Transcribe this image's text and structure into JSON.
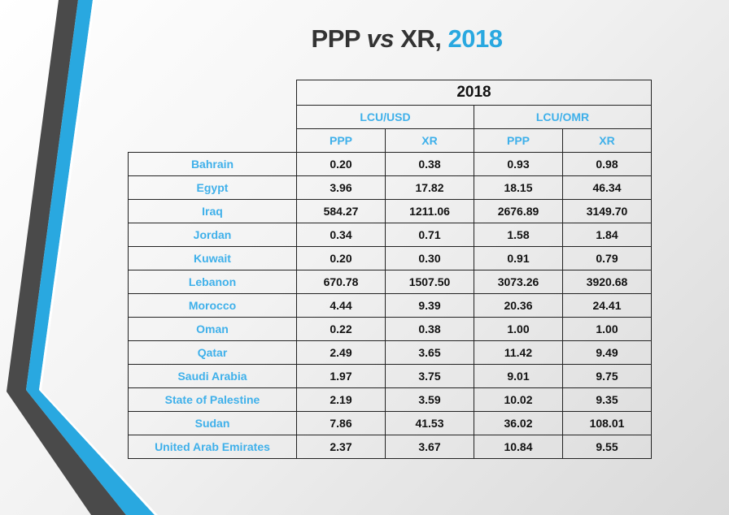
{
  "title": {
    "part1": "PPP ",
    "part2": "vs",
    "part3": " XR, ",
    "part4": "2018"
  },
  "table": {
    "year": "2018",
    "groups": [
      "LCU/USD",
      "LCU/OMR"
    ],
    "subheaders": [
      "PPP",
      "XR",
      "PPP",
      "XR"
    ],
    "rows": [
      {
        "country": "Bahrain",
        "values": [
          "0.20",
          "0.38",
          "0.93",
          "0.98"
        ]
      },
      {
        "country": "Egypt",
        "values": [
          "3.96",
          "17.82",
          "18.15",
          "46.34"
        ]
      },
      {
        "country": "Iraq",
        "values": [
          "584.27",
          "1211.06",
          "2676.89",
          "3149.70"
        ]
      },
      {
        "country": "Jordan",
        "values": [
          "0.34",
          "0.71",
          "1.58",
          "1.84"
        ]
      },
      {
        "country": "Kuwait",
        "values": [
          "0.20",
          "0.30",
          "0.91",
          "0.79"
        ]
      },
      {
        "country": "Lebanon",
        "values": [
          "670.78",
          "1507.50",
          "3073.26",
          "3920.68"
        ]
      },
      {
        "country": "Morocco",
        "values": [
          "4.44",
          "9.39",
          "20.36",
          "24.41"
        ]
      },
      {
        "country": "Oman",
        "values": [
          "0.22",
          "0.38",
          "1.00",
          "1.00"
        ]
      },
      {
        "country": "Qatar",
        "values": [
          "2.49",
          "3.65",
          "11.42",
          "9.49"
        ]
      },
      {
        "country": "Saudi Arabia",
        "values": [
          "1.97",
          "3.75",
          "9.01",
          "9.75"
        ]
      },
      {
        "country": "State of Palestine",
        "values": [
          "2.19",
          "3.59",
          "10.02",
          "9.35"
        ]
      },
      {
        "country": "Sudan",
        "values": [
          "7.86",
          "41.53",
          "36.02",
          "108.01"
        ]
      },
      {
        "country": "United Arab Emirates",
        "values": [
          "2.37",
          "3.67",
          "10.84",
          "9.55"
        ]
      }
    ]
  },
  "colors": {
    "accent": "#29a8e0",
    "dark": "#4a4a4a"
  }
}
